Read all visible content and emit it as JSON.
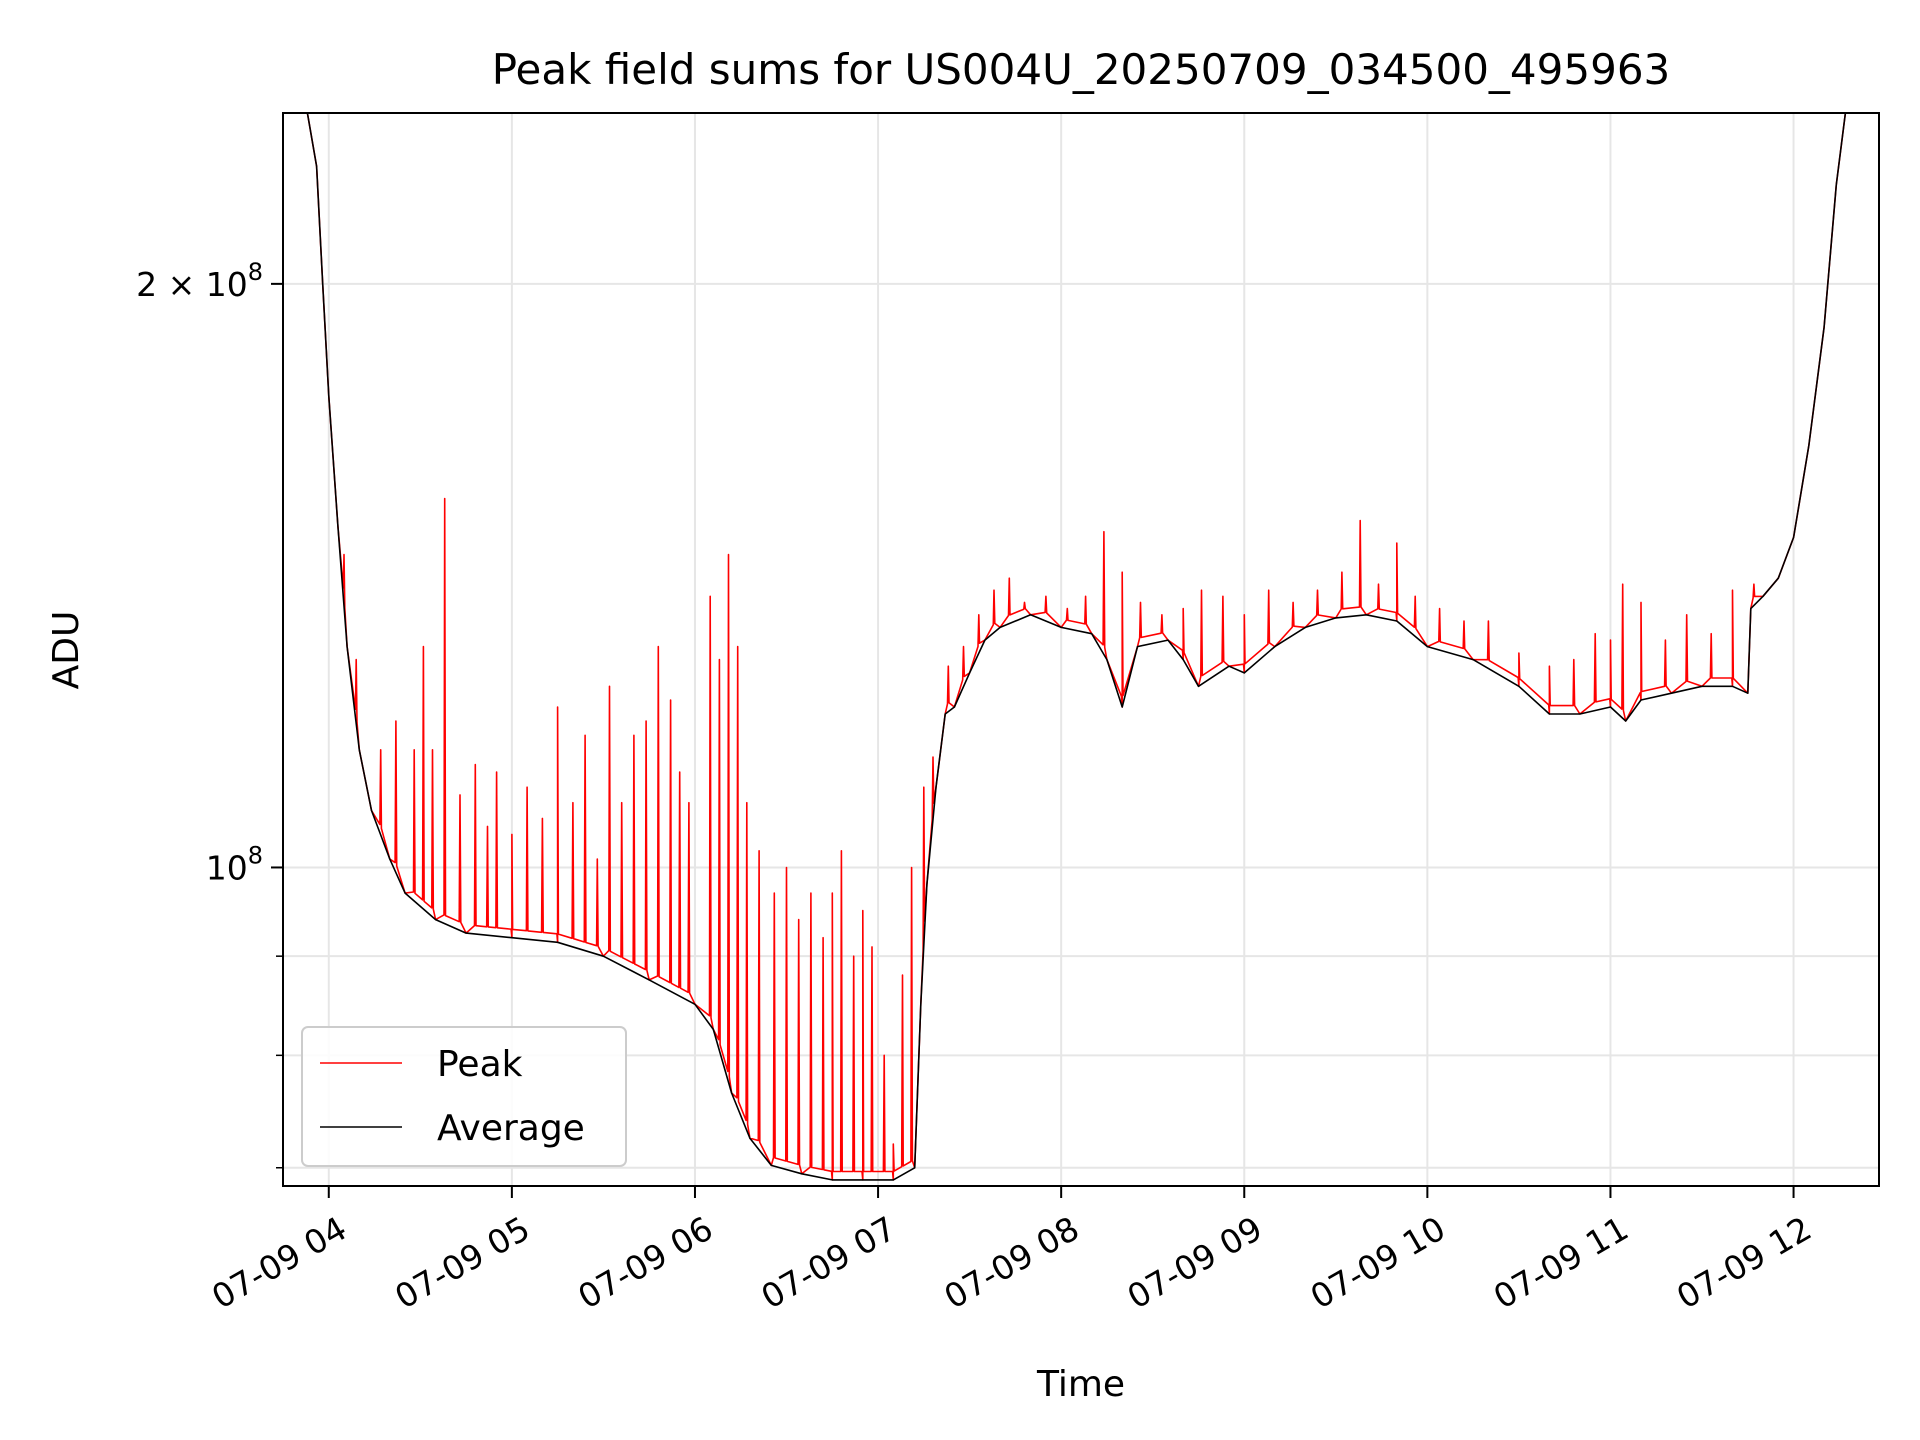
{
  "chart_data": {
    "type": "line",
    "title": "Peak field sums for US004U_20250709_034500_495963",
    "xlabel": "Time",
    "ylabel": "ADU",
    "yscale": "log",
    "ylim": [
      68500000,
      245000000
    ],
    "xlim": [
      "07-09 03:45",
      "07-09 12:28"
    ],
    "grid": true,
    "legend_position": "lower-left",
    "colors": {
      "Peak": "#ff0000",
      "Average": "#000000",
      "grid": "#e6e6e6"
    },
    "x_ticks": [
      {
        "t": "07-09 04:00",
        "label": "07-09 04"
      },
      {
        "t": "07-09 05:00",
        "label": "07-09 05"
      },
      {
        "t": "07-09 06:00",
        "label": "07-09 06"
      },
      {
        "t": "07-09 07:00",
        "label": "07-09 07"
      },
      {
        "t": "07-09 08:00",
        "label": "07-09 08"
      },
      {
        "t": "07-09 09:00",
        "label": "07-09 09"
      },
      {
        "t": "07-09 10:00",
        "label": "07-09 10"
      },
      {
        "t": "07-09 11:00",
        "label": "07-09 11"
      },
      {
        "t": "07-09 12:00",
        "label": "07-09 12"
      }
    ],
    "y_major_ticks": [
      {
        "value": 100000000,
        "mantissa": "",
        "base": "10",
        "exp": "8"
      },
      {
        "value": 200000000,
        "mantissa": "2 × ",
        "base": "10",
        "exp": "8"
      }
    ],
    "y_minor_ticks": [
      70000000,
      80000000,
      90000000
    ],
    "series": [
      {
        "name": "Average",
        "points": [
          [
            "07-09 03:45",
            245000000
          ],
          [
            "07-09 03:53",
            245000000
          ],
          [
            "07-09 03:56",
            230000000
          ],
          [
            "07-09 03:58",
            200000000
          ],
          [
            "07-09 04:00",
            175000000
          ],
          [
            "07-09 04:03",
            150000000
          ],
          [
            "07-09 04:06",
            130000000
          ],
          [
            "07-09 04:10",
            115000000
          ],
          [
            "07-09 04:14",
            107000000
          ],
          [
            "07-09 04:20",
            101000000
          ],
          [
            "07-09 04:25",
            97000000
          ],
          [
            "07-09 04:35",
            94000000
          ],
          [
            "07-09 04:45",
            92500000
          ],
          [
            "07-09 05:00",
            92000000
          ],
          [
            "07-09 05:15",
            91500000
          ],
          [
            "07-09 05:30",
            90000000
          ],
          [
            "07-09 05:45",
            87500000
          ],
          [
            "07-09 06:00",
            85000000
          ],
          [
            "07-09 06:06",
            82500000
          ],
          [
            "07-09 06:12",
            76500000
          ],
          [
            "07-09 06:18",
            72500000
          ],
          [
            "07-09 06:25",
            70200000
          ],
          [
            "07-09 06:35",
            69500000
          ],
          [
            "07-09 06:45",
            69000000
          ],
          [
            "07-09 06:55",
            69000000
          ],
          [
            "07-09 07:05",
            69000000
          ],
          [
            "07-09 07:12",
            70000000
          ],
          [
            "07-09 07:14",
            85000000
          ],
          [
            "07-09 07:16",
            98000000
          ],
          [
            "07-09 07:19",
            110000000
          ],
          [
            "07-09 07:22",
            120000000
          ],
          [
            "07-09 07:25",
            121000000
          ],
          [
            "07-09 07:30",
            126000000
          ],
          [
            "07-09 07:35",
            131000000
          ],
          [
            "07-09 07:40",
            133000000
          ],
          [
            "07-09 07:50",
            135000000
          ],
          [
            "07-09 08:00",
            133000000
          ],
          [
            "07-09 08:10",
            132000000
          ],
          [
            "07-09 08:15",
            128000000
          ],
          [
            "07-09 08:20",
            121000000
          ],
          [
            "07-09 08:25",
            130000000
          ],
          [
            "07-09 08:35",
            131000000
          ],
          [
            "07-09 08:40",
            128000000
          ],
          [
            "07-09 08:45",
            124000000
          ],
          [
            "07-09 08:55",
            127000000
          ],
          [
            "07-09 09:00",
            126000000
          ],
          [
            "07-09 09:10",
            130000000
          ],
          [
            "07-09 09:20",
            133000000
          ],
          [
            "07-09 09:30",
            134500000
          ],
          [
            "07-09 09:40",
            135000000
          ],
          [
            "07-09 09:50",
            134000000
          ],
          [
            "07-09 10:00",
            130000000
          ],
          [
            "07-09 10:15",
            128000000
          ],
          [
            "07-09 10:30",
            124000000
          ],
          [
            "07-09 10:40",
            120000000
          ],
          [
            "07-09 10:50",
            120000000
          ],
          [
            "07-09 11:00",
            121000000
          ],
          [
            "07-09 11:05",
            119000000
          ],
          [
            "07-09 11:10",
            122000000
          ],
          [
            "07-09 11:20",
            123000000
          ],
          [
            "07-09 11:30",
            124000000
          ],
          [
            "07-09 11:40",
            124000000
          ],
          [
            "07-09 11:45",
            123000000
          ],
          [
            "07-09 11:46",
            136000000
          ],
          [
            "07-09 11:50",
            138000000
          ],
          [
            "07-09 11:55",
            141000000
          ],
          [
            "07-09 12:00",
            148000000
          ],
          [
            "07-09 12:05",
            165000000
          ],
          [
            "07-09 12:10",
            190000000
          ],
          [
            "07-09 12:14",
            225000000
          ],
          [
            "07-09 12:17",
            245000000
          ],
          [
            "07-09 12:28",
            245000000
          ]
        ]
      },
      {
        "name": "Peak",
        "spikes": [
          [
            "07-09 04:05",
            145000000
          ],
          [
            "07-09 04:09",
            128000000
          ],
          [
            "07-09 04:17",
            115000000
          ],
          [
            "07-09 04:22",
            119000000
          ],
          [
            "07-09 04:28",
            115000000
          ],
          [
            "07-09 04:31",
            130000000
          ],
          [
            "07-09 04:34",
            115000000
          ],
          [
            "07-09 04:38",
            155000000
          ],
          [
            "07-09 04:43",
            109000000
          ],
          [
            "07-09 04:48",
            113000000
          ],
          [
            "07-09 04:52",
            105000000
          ],
          [
            "07-09 04:55",
            112000000
          ],
          [
            "07-09 05:00",
            104000000
          ],
          [
            "07-09 05:05",
            110000000
          ],
          [
            "07-09 05:10",
            106000000
          ],
          [
            "07-09 05:15",
            121000000
          ],
          [
            "07-09 05:20",
            108000000
          ],
          [
            "07-09 05:24",
            117000000
          ],
          [
            "07-09 05:28",
            101000000
          ],
          [
            "07-09 05:32",
            124000000
          ],
          [
            "07-09 05:36",
            108000000
          ],
          [
            "07-09 05:40",
            117000000
          ],
          [
            "07-09 05:44",
            119000000
          ],
          [
            "07-09 05:48",
            130000000
          ],
          [
            "07-09 05:52",
            122000000
          ],
          [
            "07-09 05:55",
            112000000
          ],
          [
            "07-09 05:58",
            108000000
          ],
          [
            "07-09 06:05",
            138000000
          ],
          [
            "07-09 06:08",
            128000000
          ],
          [
            "07-09 06:11",
            145000000
          ],
          [
            "07-09 06:14",
            130000000
          ],
          [
            "07-09 06:17",
            108000000
          ],
          [
            "07-09 06:21",
            102000000
          ],
          [
            "07-09 06:26",
            97000000
          ],
          [
            "07-09 06:30",
            100000000
          ],
          [
            "07-09 06:34",
            94000000
          ],
          [
            "07-09 06:38",
            97000000
          ],
          [
            "07-09 06:42",
            92000000
          ],
          [
            "07-09 06:45",
            97000000
          ],
          [
            "07-09 06:48",
            102000000
          ],
          [
            "07-09 06:52",
            90000000
          ],
          [
            "07-09 06:55",
            95000000
          ],
          [
            "07-09 06:58",
            91000000
          ],
          [
            "07-09 07:02",
            80000000
          ],
          [
            "07-09 07:05",
            72000000
          ],
          [
            "07-09 07:08",
            88000000
          ],
          [
            "07-09 07:11",
            100000000
          ],
          [
            "07-09 07:15",
            110000000
          ],
          [
            "07-09 07:18",
            114000000
          ],
          [
            "07-09 07:23",
            127000000
          ],
          [
            "07-09 07:28",
            130000000
          ],
          [
            "07-09 07:33",
            135000000
          ],
          [
            "07-09 07:38",
            139000000
          ],
          [
            "07-09 07:43",
            141000000
          ],
          [
            "07-09 07:48",
            137000000
          ],
          [
            "07-09 07:55",
            138000000
          ],
          [
            "07-09 08:02",
            136000000
          ],
          [
            "07-09 08:08",
            138000000
          ],
          [
            "07-09 08:14",
            149000000
          ],
          [
            "07-09 08:20",
            142000000
          ],
          [
            "07-09 08:26",
            137000000
          ],
          [
            "07-09 08:33",
            135000000
          ],
          [
            "07-09 08:40",
            136000000
          ],
          [
            "07-09 08:46",
            139000000
          ],
          [
            "07-09 08:53",
            138000000
          ],
          [
            "07-09 09:00",
            135000000
          ],
          [
            "07-09 09:08",
            139000000
          ],
          [
            "07-09 09:16",
            137000000
          ],
          [
            "07-09 09:24",
            139000000
          ],
          [
            "07-09 09:32",
            142000000
          ],
          [
            "07-09 09:38",
            151000000
          ],
          [
            "07-09 09:44",
            140000000
          ],
          [
            "07-09 09:50",
            147000000
          ],
          [
            "07-09 09:56",
            138000000
          ],
          [
            "07-09 10:04",
            136000000
          ],
          [
            "07-09 10:12",
            134000000
          ],
          [
            "07-09 10:20",
            134000000
          ],
          [
            "07-09 10:30",
            129000000
          ],
          [
            "07-09 10:40",
            127000000
          ],
          [
            "07-09 10:48",
            128000000
          ],
          [
            "07-09 10:55",
            132000000
          ],
          [
            "07-09 11:00",
            131000000
          ],
          [
            "07-09 11:04",
            140000000
          ],
          [
            "07-09 11:10",
            137000000
          ],
          [
            "07-09 11:18",
            131000000
          ],
          [
            "07-09 11:25",
            135000000
          ],
          [
            "07-09 11:33",
            132000000
          ],
          [
            "07-09 11:40",
            139000000
          ],
          [
            "07-09 11:47",
            140000000
          ]
        ]
      }
    ]
  }
}
